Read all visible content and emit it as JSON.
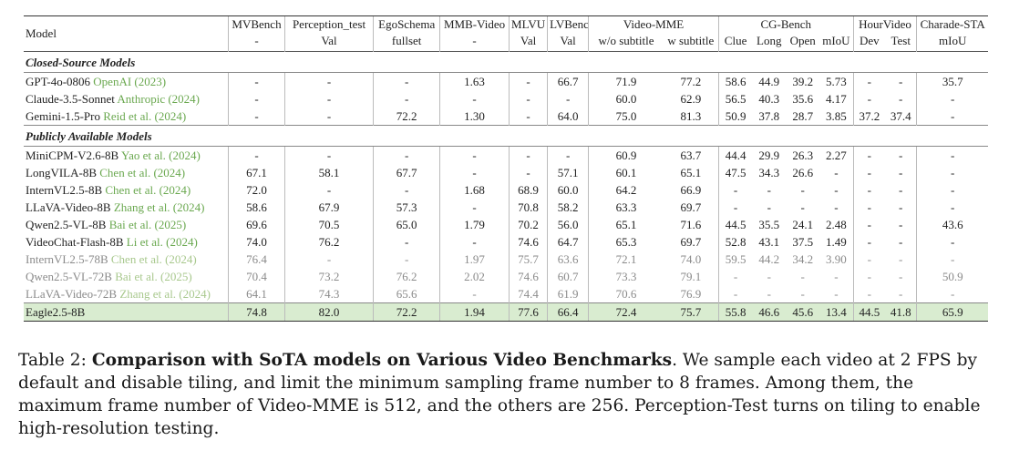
{
  "header": {
    "model": "Model",
    "groups": [
      {
        "top": "MVBench",
        "subs": [
          "-"
        ]
      },
      {
        "top": "Perception_test",
        "subs": [
          "Val"
        ]
      },
      {
        "top": "EgoSchema",
        "subs": [
          "fullset"
        ]
      },
      {
        "top": "MMB-Video",
        "subs": [
          "-"
        ]
      },
      {
        "top": "MLVU",
        "subs": [
          "Val"
        ]
      },
      {
        "top": "LVBench",
        "subs": [
          "Val"
        ]
      },
      {
        "top": "Video-MME",
        "subs": [
          "w/o subtitle",
          "w subtitle"
        ]
      },
      {
        "top": "CG-Bench",
        "subs": [
          "Clue",
          "Long",
          "Open",
          "mIoU"
        ]
      },
      {
        "top": "HourVideo",
        "subs": [
          "Dev",
          "Test"
        ]
      },
      {
        "top": "Charade-STA",
        "subs": [
          "mIoU"
        ]
      }
    ]
  },
  "sections": [
    {
      "title": "Closed-Source Models",
      "rows": [
        {
          "name": "GPT-4o-0806",
          "cite": "OpenAI (2023)",
          "values": [
            "-",
            "-",
            "-",
            "1.63",
            "-",
            "66.7",
            "71.9",
            "77.2",
            "58.6",
            "44.9",
            "39.2",
            "5.73",
            "-",
            "-",
            "35.7"
          ]
        },
        {
          "name": "Claude-3.5-Sonnet",
          "cite": "Anthropic (2024)",
          "values": [
            "-",
            "-",
            "-",
            "-",
            "-",
            "-",
            "60.0",
            "62.9",
            "56.5",
            "40.3",
            "35.6",
            "4.17",
            "-",
            "-",
            "-"
          ]
        },
        {
          "name": "Gemini-1.5-Pro",
          "cite": "Reid et al. (2024)",
          "values": [
            "-",
            "-",
            "72.2",
            "1.30",
            "-",
            "64.0",
            "75.0",
            "81.3",
            "50.9",
            "37.8",
            "28.7",
            "3.85",
            "37.2",
            "37.4",
            "-"
          ]
        }
      ]
    },
    {
      "title": "Publicly Available Models",
      "rows": [
        {
          "name": "MiniCPM-V2.6-8B",
          "cite": "Yao et al. (2024)",
          "values": [
            "-",
            "-",
            "-",
            "-",
            "-",
            "-",
            "60.9",
            "63.7",
            "44.4",
            "29.9",
            "26.3",
            "2.27",
            "-",
            "-",
            "-"
          ]
        },
        {
          "name": "LongVILA-8B",
          "cite": "Chen et al. (2024)",
          "values": [
            "67.1",
            "58.1",
            "67.7",
            "-",
            "-",
            "57.1",
            "60.1",
            "65.1",
            "47.5",
            "34.3",
            "26.6",
            "-",
            "-",
            "-",
            "-"
          ]
        },
        {
          "name": "InternVL2.5-8B",
          "cite": "Chen et al. (2024)",
          "values": [
            "72.0",
            "-",
            "-",
            "1.68",
            "68.9",
            "60.0",
            "64.2",
            "66.9",
            "-",
            "-",
            "-",
            "-",
            "-",
            "-",
            "-"
          ]
        },
        {
          "name": "LLaVA-Video-8B",
          "cite": "Zhang et al. (2024)",
          "values": [
            "58.6",
            "67.9",
            "57.3",
            "-",
            "70.8",
            "58.2",
            "63.3",
            "69.7",
            "-",
            "-",
            "-",
            "-",
            "-",
            "-",
            "-"
          ]
        },
        {
          "name": "Qwen2.5-VL-8B",
          "cite": "Bai et al. (2025)",
          "values": [
            "69.6",
            "70.5",
            "65.0",
            "1.79",
            "70.2",
            "56.0",
            "65.1",
            "71.6",
            "44.5",
            "35.5",
            "24.1",
            "2.48",
            "-",
            "-",
            "43.6"
          ]
        },
        {
          "name": "VideoChat-Flash-8B",
          "cite": "Li et al. (2024)",
          "values": [
            "74.0",
            "76.2",
            "-",
            "-",
            "74.6",
            "64.7",
            "65.3",
            "69.7",
            "52.8",
            "43.1",
            "37.5",
            "1.49",
            "-",
            "-",
            "-"
          ]
        },
        {
          "name": "InternVL2.5-78B",
          "cite": "Chen et al. (2024)",
          "gray": true,
          "values": [
            "76.4",
            "-",
            "-",
            "1.97",
            "75.7",
            "63.6",
            "72.1",
            "74.0",
            "59.5",
            "44.2",
            "34.2",
            "3.90",
            "-",
            "-",
            "-"
          ]
        },
        {
          "name": "Qwen2.5-VL-72B",
          "cite": "Bai et al. (2025)",
          "gray": true,
          "values": [
            "70.4",
            "73.2",
            "76.2",
            "2.02",
            "74.6",
            "60.7",
            "73.3",
            "79.1",
            "-",
            "-",
            "-",
            "-",
            "-",
            "-",
            "50.9"
          ]
        },
        {
          "name": "LLaVA-Video-72B",
          "cite": "Zhang et al. (2024)",
          "gray": true,
          "values": [
            "64.1",
            "74.3",
            "65.6",
            "-",
            "74.4",
            "61.9",
            "70.6",
            "76.9",
            "-",
            "-",
            "-",
            "-",
            "-",
            "-",
            "-"
          ]
        }
      ]
    }
  ],
  "highlight_row": {
    "name": "Eagle2.5-8B",
    "values": [
      "74.8",
      "82.0",
      "72.2",
      "1.94",
      "77.6",
      "66.4",
      "72.4",
      "75.7",
      "55.8",
      "46.6",
      "45.6",
      "13.4",
      "44.5",
      "41.8",
      "65.9"
    ]
  },
  "caption": {
    "label": "Table 2: ",
    "bold": "Comparison with SoTA models on Various Video Benchmarks",
    "text": ". We sample each video at 2 FPS by default and disable tiling, and limit the minimum sampling frame number to 8 frames. Among them, the maximum frame number of Video-MME is 512, and the others are 256. Perception-Test turns on tiling to enable high-resolution testing."
  },
  "colors": {
    "citation": "#6aa84f",
    "highlight_bg": "#d9ecd0",
    "gray_text": "#8a8a8a"
  }
}
